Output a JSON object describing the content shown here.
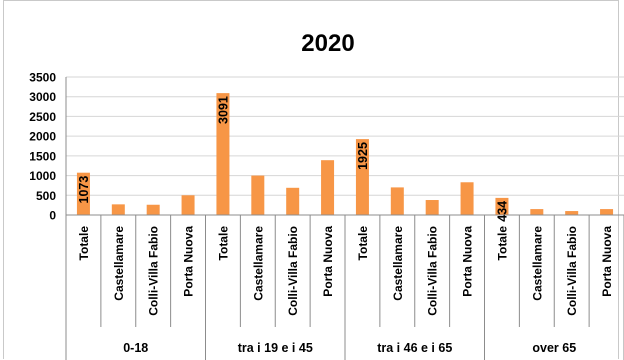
{
  "chart_data": {
    "type": "bar",
    "title": "2020",
    "ylim": [
      0,
      3500
    ],
    "yticks": [
      0,
      500,
      1000,
      1500,
      2000,
      2500,
      3000,
      3500
    ],
    "grid": true,
    "legend": "none",
    "bar_color": "#F79646",
    "groups": [
      {
        "label": "0-18",
        "categories": [
          "Totale",
          "Castellamare",
          "Colli-Villa Fabio",
          "Porta Nuova"
        ],
        "values": [
          1073,
          270,
          260,
          500
        ],
        "data_labels": [
          "1073",
          "",
          "",
          ""
        ]
      },
      {
        "label": "tra i 19 e i 45",
        "categories": [
          "Totale",
          "Castellamare",
          "Colli-Villa Fabio",
          "Porta Nuova"
        ],
        "values": [
          3091,
          1000,
          690,
          1390
        ],
        "data_labels": [
          "3091",
          "",
          "",
          ""
        ]
      },
      {
        "label": "tra i 46 e i 65",
        "categories": [
          "Totale",
          "Castellamare",
          "Colli-Villa Fabio",
          "Porta Nuova"
        ],
        "values": [
          1925,
          700,
          380,
          830
        ],
        "data_labels": [
          "1925",
          "",
          "",
          ""
        ]
      },
      {
        "label": "over 65",
        "categories": [
          "Totale",
          "Castellamare",
          "Colli-Villa Fabio",
          "Porta Nuova"
        ],
        "values": [
          434,
          150,
          100,
          150
        ],
        "data_labels": [
          "434",
          "",
          "",
          ""
        ]
      }
    ]
  }
}
